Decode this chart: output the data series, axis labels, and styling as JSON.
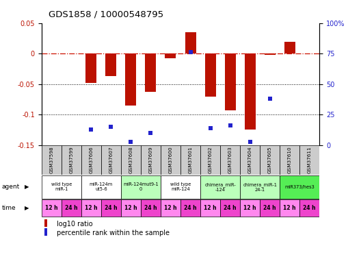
{
  "title": "GDS1858 / 10000548795",
  "samples": [
    "GSM37598",
    "GSM37599",
    "GSM37606",
    "GSM37607",
    "GSM37608",
    "GSM37609",
    "GSM37600",
    "GSM37601",
    "GSM37602",
    "GSM37603",
    "GSM37604",
    "GSM37605",
    "GSM37610",
    "GSM37611"
  ],
  "log10_ratio": [
    0.0,
    0.0,
    -0.048,
    -0.037,
    -0.085,
    -0.063,
    -0.008,
    0.035,
    -0.07,
    -0.093,
    -0.124,
    -0.002,
    0.019,
    0.0
  ],
  "percentile_rank": [
    null,
    null,
    13,
    15,
    3,
    10,
    null,
    76,
    14,
    16,
    3,
    38,
    null,
    null
  ],
  "agent_groups": [
    {
      "label": "wild type\nmiR-1",
      "cols": [
        0,
        1
      ],
      "color": "#ffffff"
    },
    {
      "label": "miR-124m\nut5-6",
      "cols": [
        2,
        3
      ],
      "color": "#ffffff"
    },
    {
      "label": "miR-124mut9-1\n0",
      "cols": [
        4,
        5
      ],
      "color": "#bbffbb"
    },
    {
      "label": "wild type\nmiR-124",
      "cols": [
        6,
        7
      ],
      "color": "#ffffff"
    },
    {
      "label": "chimera_miR-\n-124",
      "cols": [
        8,
        9
      ],
      "color": "#bbffbb"
    },
    {
      "label": "chimera_miR-1\n24-1",
      "cols": [
        10,
        11
      ],
      "color": "#bbffbb"
    },
    {
      "label": "miR373/hes3",
      "cols": [
        12,
        13
      ],
      "color": "#55ee55"
    }
  ],
  "time_labels": [
    "12 h",
    "24 h",
    "12 h",
    "24 h",
    "12 h",
    "24 h",
    "12 h",
    "24 h",
    "12 h",
    "24 h",
    "12 h",
    "24 h",
    "12 h",
    "24 h"
  ],
  "time_12h_color": "#ff88ee",
  "time_24h_color": "#ee44cc",
  "ylim_left": [
    -0.15,
    0.05
  ],
  "ylim_right": [
    0,
    100
  ],
  "yticks_left": [
    -0.15,
    -0.1,
    -0.05,
    0.0,
    0.05
  ],
  "yticks_right": [
    0,
    25,
    50,
    75,
    100
  ],
  "bar_color": "#bb1100",
  "dot_color": "#2222cc",
  "line_color": "#cc1100",
  "background_color": "#ffffff",
  "gsm_bg_color": "#cccccc",
  "chart_bg_color": "#ffffff"
}
